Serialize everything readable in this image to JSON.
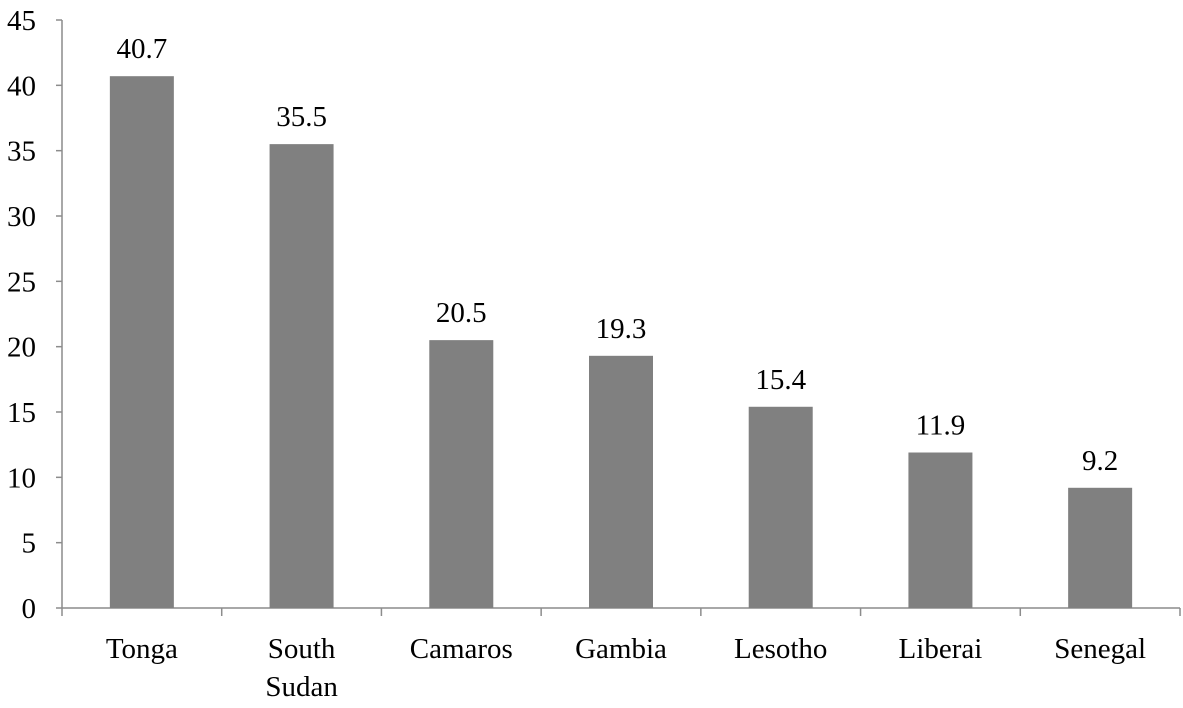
{
  "chart_data": {
    "type": "bar",
    "title": "",
    "xlabel": "",
    "ylabel": "",
    "categories": [
      [
        "Tonga"
      ],
      [
        "South",
        "Sudan"
      ],
      [
        "Camaros"
      ],
      [
        "Gambia"
      ],
      [
        "Lesotho"
      ],
      [
        "Liberai"
      ],
      [
        "Senegal"
      ]
    ],
    "values": [
      40.7,
      35.5,
      20.5,
      19.3,
      15.4,
      11.9,
      9.2
    ],
    "value_labels": [
      "40.7",
      "35.5",
      "20.5",
      "19.3",
      "15.4",
      "11.9",
      "9.2"
    ],
    "ylim": [
      0,
      45
    ],
    "yticks": [
      0,
      5,
      10,
      15,
      20,
      25,
      30,
      35,
      40,
      45
    ],
    "grid": false,
    "legend": "none",
    "bar_color": "#808080"
  }
}
